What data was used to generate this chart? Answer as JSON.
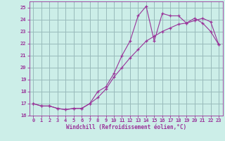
{
  "xlabel": "Windchill (Refroidissement éolien,°C)",
  "bg_color": "#cceee8",
  "line_color": "#993399",
  "grid_color": "#99bbbb",
  "xlim": [
    -0.5,
    23.5
  ],
  "ylim": [
    16,
    25.5
  ],
  "yticks": [
    16,
    17,
    18,
    19,
    20,
    21,
    22,
    23,
    24,
    25
  ],
  "xticks": [
    0,
    1,
    2,
    3,
    4,
    5,
    6,
    7,
    8,
    9,
    10,
    11,
    12,
    13,
    14,
    15,
    16,
    17,
    18,
    19,
    20,
    21,
    22,
    23
  ],
  "curve1_x": [
    0,
    1,
    2,
    3,
    4,
    5,
    6,
    7,
    8,
    9,
    10,
    11,
    12,
    13,
    14,
    15,
    16,
    17,
    18,
    19,
    20,
    21,
    22,
    23
  ],
  "curve1_y": [
    17.0,
    16.8,
    16.8,
    16.6,
    16.5,
    16.6,
    16.6,
    17.0,
    18.0,
    18.4,
    19.5,
    21.0,
    22.2,
    24.3,
    25.1,
    22.2,
    24.5,
    24.3,
    24.3,
    23.7,
    24.1,
    23.7,
    23.0,
    21.9
  ],
  "curve2_x": [
    0,
    1,
    2,
    3,
    4,
    5,
    6,
    7,
    8,
    9,
    10,
    11,
    12,
    13,
    14,
    15,
    16,
    17,
    18,
    19,
    20,
    21,
    22,
    23
  ],
  "curve2_y": [
    17.0,
    16.8,
    16.8,
    16.6,
    16.5,
    16.6,
    16.6,
    17.0,
    17.5,
    18.2,
    19.2,
    20.0,
    20.8,
    21.5,
    22.2,
    22.6,
    23.0,
    23.3,
    23.6,
    23.7,
    23.9,
    24.1,
    23.8,
    21.9
  ]
}
